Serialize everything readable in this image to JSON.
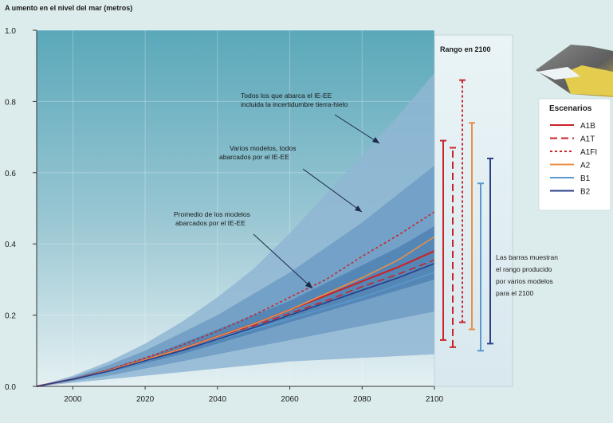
{
  "chart_data": {
    "type": "area",
    "title": "A umento en el nivel del mar (metros)",
    "xlabel": "",
    "ylabel": "",
    "xlim": [
      1990,
      2100
    ],
    "ylim": [
      0,
      1.0
    ],
    "x_ticks": [
      2000,
      2020,
      2040,
      2060,
      2080,
      2100
    ],
    "y_ticks": [
      0.0,
      0.2,
      0.4,
      0.6,
      0.8,
      1.0
    ],
    "y_tick_labels": [
      "0.0",
      "0.2",
      "0.4",
      "0.6",
      "0.8",
      "1.0"
    ],
    "grid": true,
    "bands": [
      {
        "name": "outer",
        "x": [
          1990,
          2000,
          2010,
          2020,
          2030,
          2040,
          2050,
          2060,
          2070,
          2080,
          2090,
          2100
        ],
        "lower": [
          0,
          0.01,
          0.02,
          0.03,
          0.04,
          0.05,
          0.06,
          0.07,
          0.075,
          0.08,
          0.085,
          0.09
        ],
        "upper": [
          0,
          0.03,
          0.07,
          0.12,
          0.18,
          0.25,
          0.33,
          0.43,
          0.54,
          0.65,
          0.76,
          0.88
        ],
        "color": "#8fb6d3"
      },
      {
        "name": "middle",
        "x": [
          1990,
          2000,
          2010,
          2020,
          2030,
          2040,
          2050,
          2060,
          2070,
          2080,
          2090,
          2100
        ],
        "lower": [
          0,
          0.015,
          0.03,
          0.05,
          0.07,
          0.09,
          0.11,
          0.13,
          0.15,
          0.17,
          0.19,
          0.21
        ],
        "upper": [
          0,
          0.025,
          0.06,
          0.1,
          0.15,
          0.2,
          0.26,
          0.32,
          0.39,
          0.46,
          0.54,
          0.62
        ],
        "color": "#6f9cc4"
      },
      {
        "name": "inner",
        "x": [
          1990,
          2000,
          2010,
          2020,
          2030,
          2040,
          2050,
          2060,
          2070,
          2080,
          2090,
          2100
        ],
        "lower": [
          0,
          0.018,
          0.04,
          0.065,
          0.09,
          0.12,
          0.15,
          0.18,
          0.21,
          0.24,
          0.27,
          0.3
        ],
        "upper": [
          0,
          0.022,
          0.05,
          0.08,
          0.12,
          0.16,
          0.2,
          0.24,
          0.29,
          0.34,
          0.39,
          0.45
        ],
        "color": "#4f82b3"
      }
    ],
    "series": [
      {
        "name": "A1B",
        "x": [
          1990,
          2000,
          2010,
          2020,
          2030,
          2040,
          2050,
          2060,
          2070,
          2080,
          2090,
          2100
        ],
        "values": [
          0,
          0.02,
          0.045,
          0.075,
          0.105,
          0.14,
          0.175,
          0.215,
          0.255,
          0.295,
          0.335,
          0.38
        ],
        "color": "#c8242b",
        "dash": ""
      },
      {
        "name": "A1T",
        "x": [
          1990,
          2000,
          2010,
          2020,
          2030,
          2040,
          2050,
          2060,
          2070,
          2080,
          2090,
          2100
        ],
        "values": [
          0,
          0.02,
          0.045,
          0.075,
          0.105,
          0.14,
          0.17,
          0.205,
          0.24,
          0.28,
          0.315,
          0.355
        ],
        "color": "#c8242b",
        "dash": "9,5"
      },
      {
        "name": "A1FI",
        "x": [
          1990,
          2000,
          2010,
          2020,
          2030,
          2040,
          2050,
          2060,
          2070,
          2080,
          2090,
          2100
        ],
        "values": [
          0,
          0.02,
          0.047,
          0.08,
          0.115,
          0.155,
          0.2,
          0.25,
          0.3,
          0.365,
          0.425,
          0.49
        ],
        "color": "#c8242b",
        "dash": "3,3"
      },
      {
        "name": "A2",
        "x": [
          1990,
          2000,
          2010,
          2020,
          2030,
          2040,
          2050,
          2060,
          2070,
          2080,
          2090,
          2100
        ],
        "values": [
          0,
          0.02,
          0.045,
          0.075,
          0.105,
          0.14,
          0.175,
          0.215,
          0.26,
          0.305,
          0.355,
          0.42
        ],
        "color": "#e8904a",
        "dash": ""
      },
      {
        "name": "B1",
        "x": [
          1990,
          2000,
          2010,
          2020,
          2030,
          2040,
          2050,
          2060,
          2070,
          2080,
          2090,
          2100
        ],
        "values": [
          0,
          0.02,
          0.043,
          0.07,
          0.1,
          0.13,
          0.16,
          0.19,
          0.22,
          0.25,
          0.285,
          0.32
        ],
        "color": "#5b98cc",
        "dash": ""
      },
      {
        "name": "B2",
        "x": [
          1990,
          2000,
          2010,
          2020,
          2030,
          2040,
          2050,
          2060,
          2070,
          2080,
          2090,
          2100
        ],
        "values": [
          0,
          0.02,
          0.043,
          0.072,
          0.1,
          0.132,
          0.165,
          0.2,
          0.235,
          0.27,
          0.305,
          0.345
        ],
        "color": "#2a3f8a",
        "dash": ""
      }
    ],
    "range_2100": {
      "title": "Rango en 2100",
      "bars": [
        {
          "name": "A1B",
          "min": 0.13,
          "max": 0.69,
          "color": "#c8242b",
          "dash": ""
        },
        {
          "name": "A1T",
          "min": 0.11,
          "max": 0.67,
          "color": "#c8242b",
          "dash": "9,5"
        },
        {
          "name": "A1FI",
          "min": 0.18,
          "max": 0.86,
          "color": "#c8242b",
          "dash": "3,3"
        },
        {
          "name": "A2",
          "min": 0.16,
          "max": 0.74,
          "color": "#e8904a",
          "dash": ""
        },
        {
          "name": "B1",
          "min": 0.1,
          "max": 0.57,
          "color": "#5b98cc",
          "dash": ""
        },
        {
          "name": "B2",
          "min": 0.12,
          "max": 0.64,
          "color": "#2a3f8a",
          "dash": ""
        }
      ]
    },
    "legend": {
      "title": "Escenarios",
      "entries": [
        "A1B",
        "A1T",
        "A1FI",
        "A2",
        "B1",
        "B2"
      ],
      "placement": "right"
    },
    "annotations": [
      {
        "lines": [
          "Todos los que abarca el IE-EE",
          "incluida la incertidumbre tierra-hielo"
        ],
        "target": "outer-band"
      },
      {
        "lines": [
          "Varios modelos, todos",
          "abarcados por el IE-EE"
        ],
        "target": "middle-band"
      },
      {
        "lines": [
          "Promedio de los modelos",
          "abarcados por el IE-EE"
        ],
        "target": "model-average"
      },
      {
        "lines": [
          "Las barras muestran",
          "el rango producido",
          "por varios modelos",
          "para el 2100"
        ],
        "target": "range-bars"
      }
    ]
  }
}
